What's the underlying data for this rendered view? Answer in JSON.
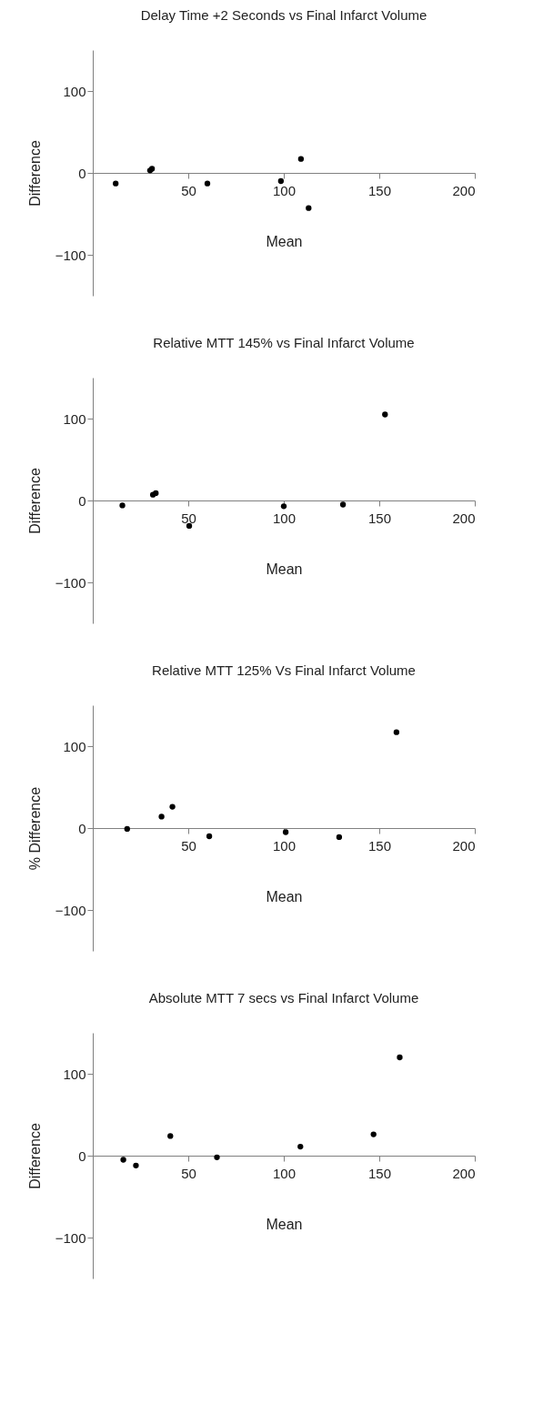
{
  "chart_data": [
    {
      "type": "scatter",
      "title": "Delay Time +2 Seconds vs Final Infarct Volume",
      "xlabel": "Mean",
      "ylabel": "Difference",
      "xlim": [
        0,
        200
      ],
      "xticks": [
        50,
        100,
        150,
        200
      ],
      "ylim": [
        -150,
        150
      ],
      "yticks": [
        -100,
        0,
        100
      ],
      "marker": "circle",
      "grid": false,
      "series": [
        {
          "color": "#000000",
          "x": [
            12,
            30,
            31,
            60,
            98.5,
            109,
            113
          ],
          "values": [
            -13,
            3,
            5,
            -13,
            -10,
            17,
            -43
          ]
        }
      ]
    },
    {
      "type": "scatter",
      "title": "Relative MTT 145% vs Final Infarct Volume",
      "xlabel": "Mean",
      "ylabel": "Difference",
      "xlim": [
        0,
        200
      ],
      "xticks": [
        50,
        100,
        150,
        200
      ],
      "ylim": [
        -150,
        150
      ],
      "yticks": [
        -100,
        0,
        100
      ],
      "marker": "circle",
      "grid": false,
      "series": [
        {
          "color": "#000000",
          "x": [
            15.5,
            31.5,
            33,
            50.5,
            100,
            131,
            153
          ],
          "values": [
            -6,
            7,
            9,
            -31,
            -7,
            -5,
            105
          ]
        }
      ]
    },
    {
      "type": "scatter",
      "title": "Relative MTT 125% Vs Final Infarct Volume",
      "xlabel": "Mean",
      "ylabel": "% Difference",
      "xlim": [
        0,
        200
      ],
      "xticks": [
        50,
        100,
        150,
        200
      ],
      "ylim": [
        -150,
        150
      ],
      "yticks": [
        -100,
        0,
        100
      ],
      "marker": "circle",
      "grid": false,
      "series": [
        {
          "color": "#000000",
          "x": [
            18,
            36,
            41.7,
            61,
            101,
            129,
            159
          ],
          "values": [
            -1,
            14,
            26,
            -10,
            -5,
            -11,
            117
          ]
        }
      ]
    },
    {
      "type": "scatter",
      "title": "Absolute MTT 7 secs vs Final Infarct Volume",
      "xlabel": "Mean",
      "ylabel": "Difference",
      "xlim": [
        0,
        200
      ],
      "xticks": [
        50,
        100,
        150,
        200
      ],
      "ylim": [
        -150,
        150
      ],
      "yticks": [
        -100,
        0,
        100
      ],
      "marker": "circle",
      "grid": false,
      "series": [
        {
          "color": "#000000",
          "x": [
            16,
            22.6,
            40.6,
            65,
            108.7,
            147,
            160.7
          ],
          "values": [
            -5,
            -12,
            24,
            -2,
            11,
            26,
            120
          ]
        }
      ]
    }
  ]
}
